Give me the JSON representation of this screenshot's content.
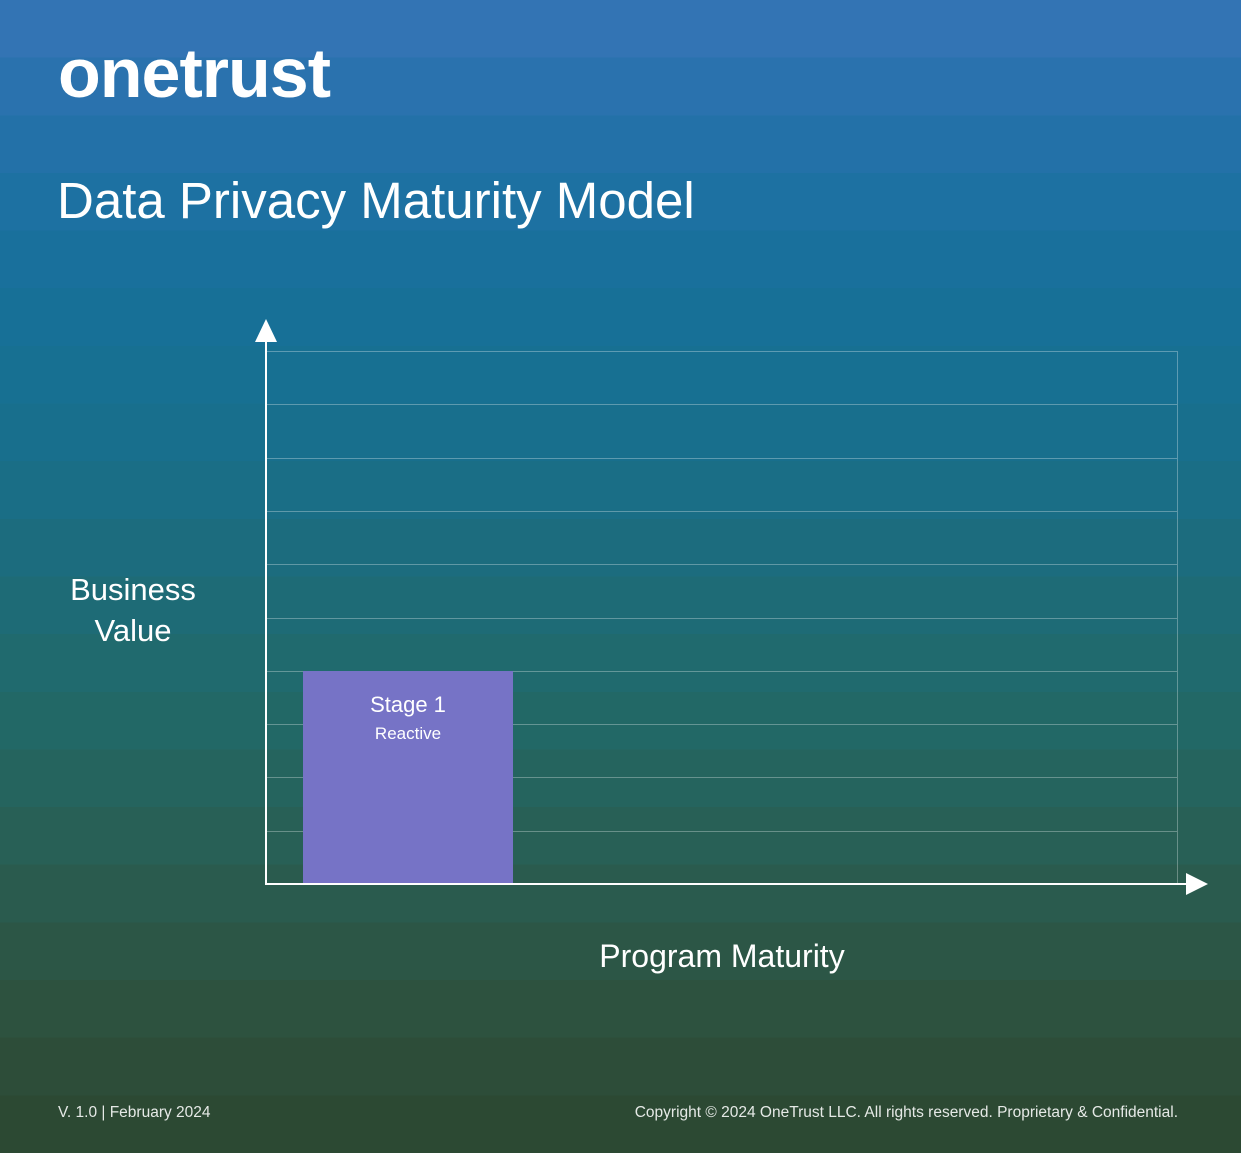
{
  "brand": {
    "logo_text": "onetrust"
  },
  "header": {
    "title": "Data Privacy Maturity Model"
  },
  "labels": {
    "y_axis_line1": "Business",
    "y_axis_line2": "Value",
    "x_axis": "Program Maturity"
  },
  "footer": {
    "version": "V. 1.0 | February 2024",
    "copyright": "Copyright © 2024 OneTrust LLC. All rights reserved. Proprietary & Confidential."
  },
  "colors": {
    "bar": "#7673C6",
    "axis": "#FFFFFF",
    "gridline": "rgba(255,255,255,0.30)",
    "background_top": "#3374B4",
    "background_mid": "#1E6B76",
    "background_bottom": "#2C4933",
    "text": "#FFFFFF"
  },
  "chart_data": {
    "type": "bar",
    "title": "Data Privacy Maturity Model",
    "xlabel": "Program Maturity",
    "ylabel": "Business Value",
    "categories": [
      "Stage 1"
    ],
    "values": [
      4
    ],
    "bar_sublabels": [
      "Reactive"
    ],
    "ylim": [
      0,
      10
    ],
    "gridlines": 10,
    "axis_tick_labels": "none",
    "legend": "none",
    "layout": "single purple bar at far left of x-axis spanning lowest 4 of 10 unlabeled gridline rows; axes drawn as white arrows"
  }
}
